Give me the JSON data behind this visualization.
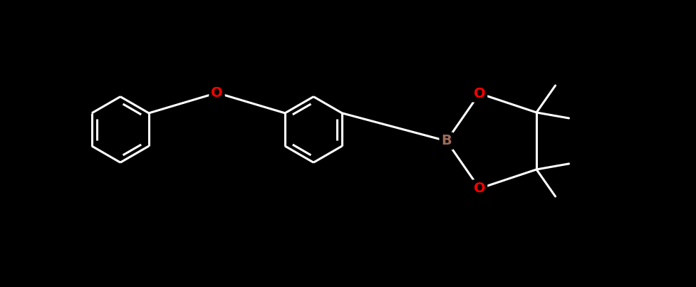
{
  "background_color": "#000000",
  "bond_color": "#ffffff",
  "O_color": "#ff0000",
  "B_color": "#9e6b5a",
  "figsize": [
    9.78,
    4.03
  ],
  "dpi": 100,
  "xlim": [
    -5.5,
    5.5
  ],
  "ylim": [
    -2.2,
    2.2
  ],
  "lw": 2.2,
  "r": 0.52,
  "font_size": 14
}
